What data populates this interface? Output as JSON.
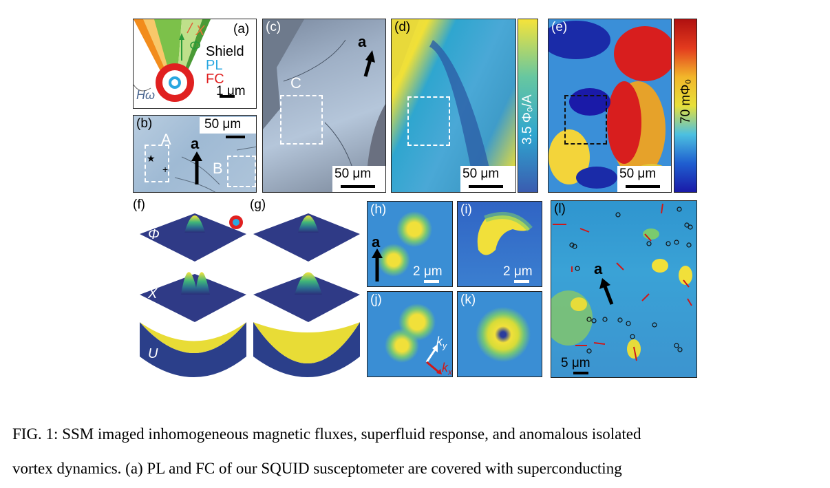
{
  "figure": {
    "panel_a": {
      "label": "(a)",
      "x_label": "X",
      "phi_label": "Φ",
      "shield": "Shield",
      "pl": "PL",
      "fc": "FC",
      "h_label": "Hω",
      "scale": "1 μm"
    },
    "panel_b": {
      "label": "(b)",
      "scale": "50 μm",
      "region_a": "A",
      "region_b": "B",
      "axis": "a"
    },
    "panel_c": {
      "label": "(c)",
      "region": "C",
      "axis": "a",
      "scale": "50 μm"
    },
    "panel_d": {
      "label": "(d)",
      "scale": "50 μm",
      "colorbar": "3.5 Φ₀/A"
    },
    "panel_e": {
      "label": "(e)",
      "scale": "50 μm",
      "colorbar": "70 mΦ₀"
    },
    "panel_f": {
      "label": "(f)",
      "phi": "Φ",
      "chi": "X",
      "u": "U"
    },
    "panel_g": {
      "label": "(g)"
    },
    "panel_h": {
      "label": "(h)",
      "axis": "a",
      "scale": "2 μm"
    },
    "panel_i": {
      "label": "(i)",
      "scale": "2 μm"
    },
    "panel_j": {
      "label": "(j)",
      "ky": "k",
      "ky_sub": "y",
      "kx": "k",
      "kx_sub": "x"
    },
    "panel_k": {
      "label": "(k)"
    },
    "panel_l": {
      "label": "(l)",
      "axis": "a",
      "scale": "5 μm"
    }
  },
  "caption": {
    "line1": "FIG. 1:  SSM imaged inhomogeneous magnetic fluxes, superfluid response, and anomalous isolated",
    "line2": "vortex dynamics.  (a) PL and FC of our SQUID susceptometer are covered with superconducting"
  },
  "colors": {
    "jet_low": "#1a1aa8",
    "jet_mid": "#2f9fd8",
    "jet_high": "#e9e03a",
    "hot": "#d81e1e",
    "viridis_low": "#2b2f7a",
    "viridis_high": "#f5e33a"
  }
}
